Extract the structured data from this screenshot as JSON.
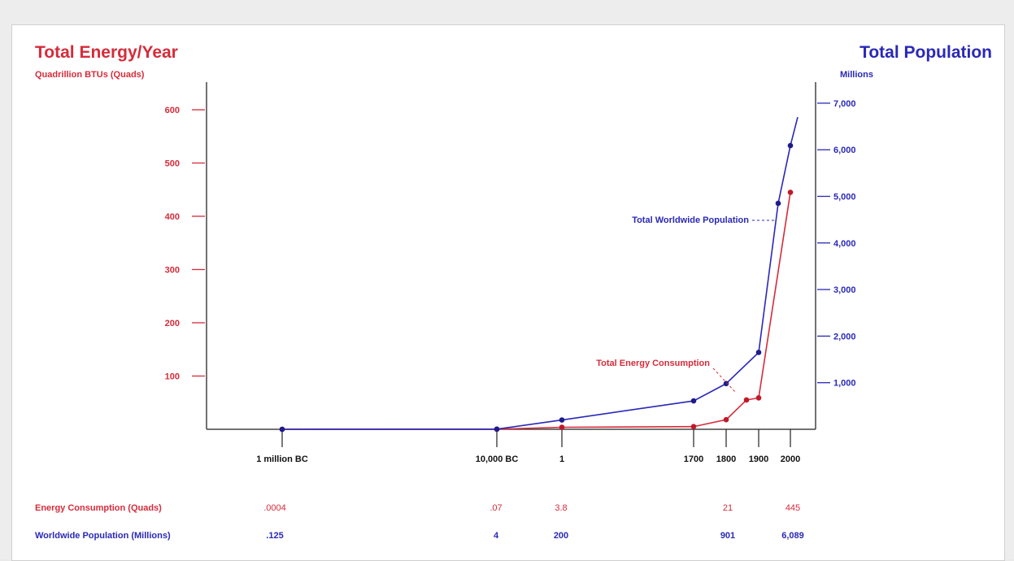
{
  "chart_data": {
    "type": "line",
    "left_axis": {
      "title": "Total Energy/Year",
      "unit": "Quadrillion BTUs (Quads)",
      "ticks": [
        "100",
        "200",
        "300",
        "400",
        "500",
        "600"
      ],
      "tick_values": [
        100,
        200,
        300,
        400,
        500,
        600
      ],
      "ylim": [
        0,
        680
      ],
      "color": "#d62b3a"
    },
    "right_axis": {
      "title": "Total Population",
      "unit": "Millions",
      "ticks": [
        "1,000",
        "2,000",
        "3,000",
        "4,000",
        "5,000",
        "6,000",
        "7,000"
      ],
      "tick_values": [
        1000,
        2000,
        3000,
        4000,
        5000,
        6000,
        7000
      ],
      "ylim": [
        0,
        7800
      ],
      "color": "#2a28b8"
    },
    "x_axis": {
      "labels": [
        "1 million BC",
        "10,000 BC",
        "1",
        "1700",
        "1800",
        "1900",
        "2000"
      ]
    },
    "series": [
      {
        "name": "Total Energy Consumption",
        "axis": "left",
        "color": "#d62b3a",
        "points": [
          {
            "x": "1 million BC",
            "y": 0.0004
          },
          {
            "x": "10,000 BC",
            "y": 0.07
          },
          {
            "x": "1",
            "y": 3.8
          },
          {
            "x": "1700",
            "y": 5
          },
          {
            "x": "1800",
            "y": 18
          },
          {
            "x": "",
            "y": 55
          },
          {
            "x": "1900",
            "y": 59
          },
          {
            "x": "2000",
            "y": 445
          }
        ]
      },
      {
        "name": "Total Worldwide Population",
        "axis": "right",
        "color": "#2a28b8",
        "points": [
          {
            "x": "1 million BC",
            "y": 0.125
          },
          {
            "x": "10,000 BC",
            "y": 4
          },
          {
            "x": "1",
            "y": 200
          },
          {
            "x": "1700",
            "y": 610
          },
          {
            "x": "1800",
            "y": 980
          },
          {
            "x": "1900",
            "y": 1650
          },
          {
            "x": "",
            "y": 4850
          },
          {
            "x": "2000",
            "y": 6089
          }
        ]
      }
    ],
    "table": {
      "rows": [
        {
          "label": "Energy Consumption (Quads)",
          "color": "#d62b3a",
          "values": [
            ".0004",
            ".07",
            "3.8",
            "21",
            "445"
          ]
        },
        {
          "label": "Worldwide Population (Millions)",
          "color": "#2a28b8",
          "values": [
            ".125",
            "4",
            "200",
            "901",
            "6,089"
          ]
        }
      ]
    }
  }
}
